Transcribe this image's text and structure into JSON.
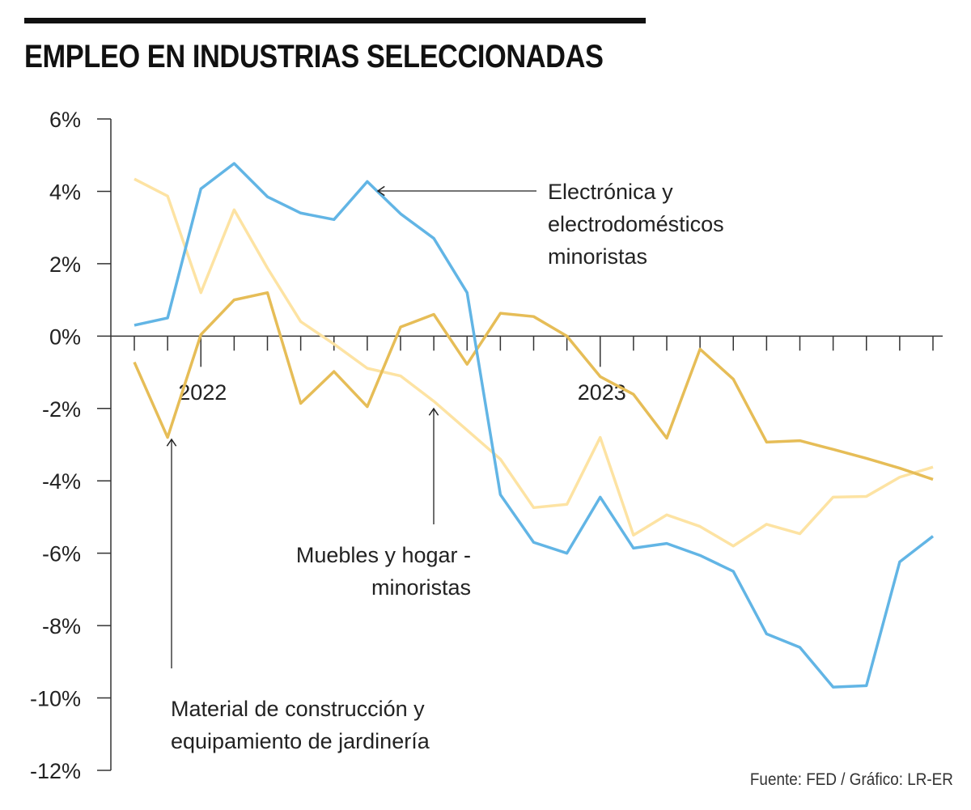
{
  "chart_data": {
    "type": "line",
    "title": "EMPLEO EN INDUSTRIAS SELECCIONADAS",
    "xlabel": "",
    "ylabel": "",
    "ylim": [
      -12,
      6
    ],
    "yticks": [
      6,
      4,
      2,
      0,
      -2,
      -4,
      -6,
      -8,
      -10,
      -12
    ],
    "ytick_labels": [
      "6%",
      "4%",
      "2%",
      "0%",
      "-2%",
      "-4%",
      "-6%",
      "-8%",
      "-10%",
      "-12%"
    ],
    "x_tick_labels": [
      {
        "index": 2,
        "label": "2022"
      },
      {
        "index": 14,
        "label": "2023"
      }
    ],
    "x_points": 25,
    "grid": false,
    "series": [
      {
        "name": "Electrónica y electrodomésticos minoristas",
        "color": "#62b5e5",
        "values": [
          0.3,
          0.5,
          4.07,
          4.77,
          3.85,
          3.4,
          3.22,
          4.27,
          3.38,
          2.7,
          1.2,
          -4.38,
          -5.7,
          -6.0,
          -4.45,
          -5.86,
          -5.73,
          -6.06,
          -6.5,
          -8.23,
          -8.6,
          -9.7,
          -9.66,
          -6.24,
          -5.53
        ]
      },
      {
        "name": "Muebles y hogar - minoristas",
        "color": "#fde3a3",
        "values": [
          4.34,
          3.87,
          1.2,
          3.49,
          1.88,
          0.4,
          -0.22,
          -0.89,
          -1.1,
          -1.8,
          -2.6,
          -3.4,
          -4.74,
          -4.65,
          -2.8,
          -5.5,
          -4.94,
          -5.26,
          -5.8,
          -5.2,
          -5.46,
          -4.45,
          -4.43,
          -3.9,
          -3.62
        ]
      },
      {
        "name": "Material de construcción y equipamiento de jardinería",
        "color": "#e6bd57",
        "values": [
          -0.72,
          -2.8,
          0.04,
          1.0,
          1.2,
          -1.86,
          -0.98,
          -1.95,
          0.25,
          0.6,
          -0.78,
          0.63,
          0.54,
          0.0,
          -1.12,
          -1.61,
          -2.82,
          -0.36,
          -1.19,
          -2.93,
          -2.89,
          -3.13,
          -3.38,
          -3.65,
          -3.96
        ]
      }
    ],
    "annotations": {
      "electronica": [
        "Electrónica y",
        "electrodomésticos",
        "minoristas"
      ],
      "muebles": [
        "Muebles y hogar -",
        "minoristas"
      ],
      "material": [
        "Material de construcción y",
        "equipamiento de jardinería"
      ]
    },
    "source": "Fuente: FED / Gráfico: LR-ER"
  }
}
